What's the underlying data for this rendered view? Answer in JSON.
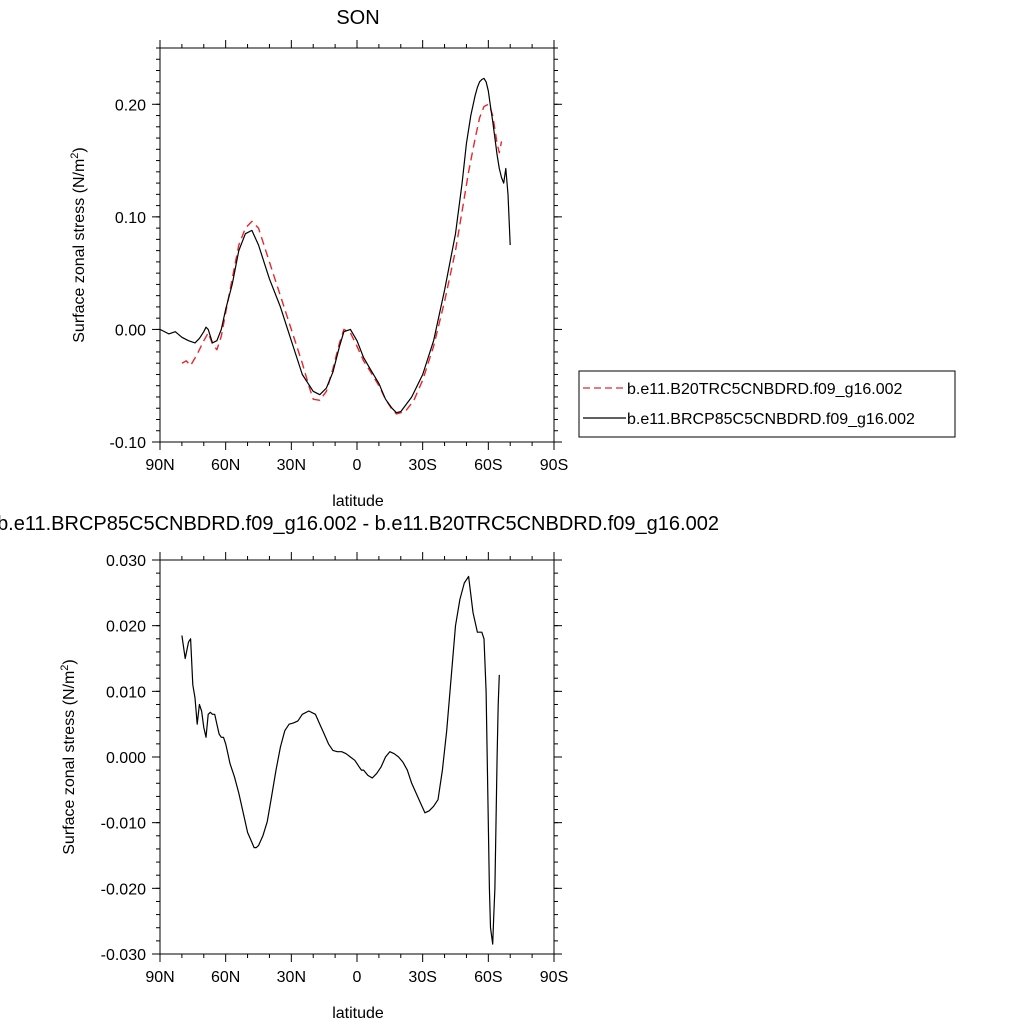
{
  "chart_data": [
    {
      "type": "line",
      "title": "SON",
      "xlabel": "latitude",
      "ylabel": "Surface zonal stress (N/m",
      "ylabel_sup": "2",
      "ylabel_end": ")",
      "xlim": [
        90,
        -90
      ],
      "ylim": [
        -0.1,
        0.25
      ],
      "x_ticks": [
        90,
        60,
        30,
        0,
        -30,
        -60,
        -90
      ],
      "x_tick_labels": [
        "90N",
        "60N",
        "30N",
        "0",
        "30S",
        "60S",
        "90S"
      ],
      "y_ticks": [
        -0.1,
        0.0,
        0.1,
        0.2
      ],
      "y_tick_labels": [
        "-0.10",
        "0.00",
        "0.10",
        "0.20"
      ],
      "grid": false,
      "legend_position": "right",
      "series": [
        {
          "name": "b.e11.B20TRC5CNBDRD.f09_g16.002",
          "color": "#e8262b",
          "dash": "dashed",
          "x": [
            80,
            78,
            76,
            73,
            70,
            68,
            66,
            64,
            62,
            60,
            57,
            54,
            51,
            48,
            45,
            40,
            35,
            30,
            25,
            22,
            20,
            17,
            14,
            11,
            8,
            6,
            3,
            0,
            -3,
            -6,
            -10,
            -13,
            -16,
            -18,
            -22,
            -26,
            -30,
            -35,
            -40,
            -45,
            -48,
            -51,
            -54,
            -56,
            -58,
            -60,
            -61,
            -62,
            -63,
            -64,
            -65,
            -66
          ],
          "y": [
            -0.03,
            -0.028,
            -0.032,
            -0.022,
            -0.01,
            -0.003,
            -0.013,
            -0.018,
            -0.006,
            0.015,
            0.045,
            0.075,
            0.09,
            0.096,
            0.09,
            0.06,
            0.03,
            0.0,
            -0.03,
            -0.05,
            -0.062,
            -0.063,
            -0.055,
            -0.035,
            -0.012,
            0.0,
            -0.003,
            -0.015,
            -0.028,
            -0.037,
            -0.05,
            -0.062,
            -0.071,
            -0.075,
            -0.073,
            -0.063,
            -0.045,
            -0.015,
            0.025,
            0.07,
            0.105,
            0.14,
            0.17,
            0.188,
            0.198,
            0.2,
            0.196,
            0.19,
            0.178,
            0.165,
            0.157,
            0.167
          ]
        },
        {
          "name": "b.e11.BRCP85C5CNBDRD.f09_g16.002",
          "color": "#000000",
          "dash": "solid",
          "x": [
            90,
            86,
            83,
            80,
            77,
            74,
            72,
            70,
            69,
            68,
            66,
            64,
            62,
            60,
            57,
            54,
            51,
            48,
            45,
            40,
            35,
            30,
            25,
            20,
            17,
            14,
            11,
            8,
            6,
            3,
            0,
            -3,
            -6,
            -10,
            -13,
            -16,
            -18,
            -20,
            -25,
            -30,
            -35,
            -40,
            -45,
            -48,
            -50,
            -52,
            -54,
            -55,
            -56,
            -57,
            -58,
            -59,
            -60,
            -61,
            -62,
            -63,
            -64,
            -65,
            -66,
            -67,
            -68,
            -69,
            -70
          ],
          "y": [
            0.0,
            -0.004,
            -0.002,
            -0.007,
            -0.01,
            -0.012,
            -0.008,
            -0.002,
            0.002,
            0.0,
            -0.012,
            -0.01,
            0.0,
            0.018,
            0.04,
            0.07,
            0.085,
            0.088,
            0.075,
            0.045,
            0.02,
            -0.01,
            -0.04,
            -0.055,
            -0.058,
            -0.052,
            -0.038,
            -0.015,
            -0.002,
            0.0,
            -0.01,
            -0.025,
            -0.035,
            -0.048,
            -0.062,
            -0.07,
            -0.074,
            -0.073,
            -0.06,
            -0.04,
            -0.01,
            0.035,
            0.085,
            0.13,
            0.165,
            0.19,
            0.208,
            0.215,
            0.22,
            0.222,
            0.223,
            0.22,
            0.212,
            0.198,
            0.185,
            0.17,
            0.155,
            0.143,
            0.135,
            0.13,
            0.143,
            0.12,
            0.075
          ]
        }
      ]
    },
    {
      "type": "line",
      "title": "b.e11.BRCP85C5CNBDRD.f09_g16.002 - b.e11.B20TRC5CNBDRD.f09_g16.002",
      "xlabel": "latitude",
      "ylabel": "Surface zonal stress (N/m",
      "ylabel_sup": "2",
      "ylabel_end": ")",
      "xlim": [
        90,
        -90
      ],
      "ylim": [
        -0.03,
        0.03
      ],
      "x_ticks": [
        90,
        60,
        30,
        0,
        -30,
        -60,
        -90
      ],
      "x_tick_labels": [
        "90N",
        "60N",
        "30N",
        "0",
        "30S",
        "60S",
        "90S"
      ],
      "y_ticks": [
        -0.03,
        -0.02,
        -0.01,
        0.0,
        0.01,
        0.02,
        0.03
      ],
      "y_tick_labels": [
        "-0.030",
        "-0.020",
        "-0.010",
        "0.000",
        "0.010",
        "0.020",
        "0.030"
      ],
      "grid": false,
      "series": [
        {
          "color": "#000000",
          "dash": "solid",
          "x": [
            80,
            78.5,
            77,
            76,
            75,
            74,
            73,
            72,
            71,
            70,
            69,
            68,
            67,
            66,
            65,
            64,
            63,
            62,
            61,
            60,
            59,
            58,
            56,
            54,
            52,
            50,
            48,
            47,
            46,
            45,
            43,
            41,
            39,
            37,
            35,
            33,
            31,
            29,
            27,
            25,
            22,
            19,
            17,
            15,
            13,
            11,
            9,
            7,
            5,
            3,
            1,
            -1,
            -2,
            -3,
            -5,
            -7,
            -9,
            -11,
            -13,
            -15,
            -17,
            -19,
            -21,
            -23,
            -25,
            -27,
            -29,
            -31,
            -33,
            -35,
            -37,
            -39,
            -41,
            -43,
            -45,
            -47,
            -49,
            -51,
            -53,
            -55,
            -57,
            -58,
            -59,
            -59.5,
            -60,
            -60.5,
            -61,
            -62,
            -62.5,
            -63,
            -63.5,
            -64,
            -64.5,
            -65
          ],
          "y": [
            0.0185,
            0.015,
            0.0175,
            0.018,
            0.011,
            0.009,
            0.005,
            0.008,
            0.007,
            0.0045,
            0.003,
            0.0065,
            0.0068,
            0.0065,
            0.0065,
            0.005,
            0.0035,
            0.003,
            0.003,
            0.002,
            0.0005,
            -0.001,
            -0.003,
            -0.0055,
            -0.0085,
            -0.0115,
            -0.013,
            -0.0138,
            -0.0138,
            -0.0135,
            -0.012,
            -0.0098,
            -0.006,
            -0.002,
            0.0015,
            0.004,
            0.005,
            0.0052,
            0.0055,
            0.0065,
            0.007,
            0.0065,
            0.005,
            0.0035,
            0.002,
            0.001,
            0.0008,
            0.0008,
            0.0005,
            0.0,
            -0.0005,
            -0.0015,
            -0.002,
            -0.002,
            -0.0028,
            -0.0032,
            -0.0025,
            -0.0015,
            0.0,
            0.0008,
            0.0005,
            0.0,
            -0.0008,
            -0.002,
            -0.004,
            -0.0055,
            -0.007,
            -0.0085,
            -0.0082,
            -0.0075,
            -0.0065,
            -0.002,
            0.004,
            0.012,
            0.02,
            0.024,
            0.0265,
            0.0275,
            0.022,
            0.019,
            0.019,
            0.018,
            0.01,
            0.0,
            -0.01,
            -0.02,
            -0.026,
            -0.0285,
            -0.024,
            -0.02,
            -0.01,
            0.0,
            0.008,
            0.0125
          ]
        }
      ]
    }
  ]
}
